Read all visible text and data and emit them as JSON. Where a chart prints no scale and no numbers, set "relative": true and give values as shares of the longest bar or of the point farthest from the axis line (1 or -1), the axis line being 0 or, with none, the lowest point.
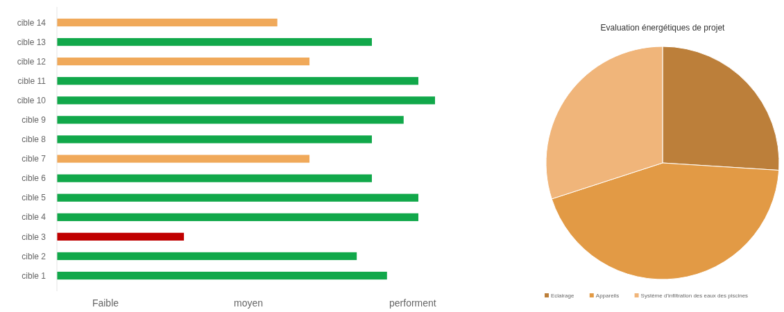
{
  "chart_data": [
    {
      "type": "bar",
      "orientation": "horizontal",
      "relative": true,
      "categories": [
        "cible 14",
        "cible 13",
        "cible 12",
        "cible 11",
        "cible 10",
        "cible 9",
        "cible 8",
        "cible 7",
        "cible 6",
        "cible 5",
        "cible 4",
        "cible 3",
        "cible 2",
        "cible 1"
      ],
      "values": [
        0.583,
        0.833,
        0.668,
        0.956,
        1,
        0.917,
        0.833,
        0.668,
        0.833,
        0.956,
        0.956,
        0.336,
        0.793,
        0.873
      ],
      "colors": [
        "#f0a95a",
        "#11a84a",
        "#f0a95a",
        "#11a84a",
        "#11a84a",
        "#11a84a",
        "#11a84a",
        "#f0a95a",
        "#11a84a",
        "#11a84a",
        "#11a84a",
        "#c00000",
        "#11a84a",
        "#11a84a"
      ],
      "annotations": [
        "Faible",
        "moyen",
        "performent"
      ]
    },
    {
      "type": "pie",
      "title": "Evaluation énergétiques de projet",
      "categories": [
        "Eclairage",
        "Appareils",
        "Système d'infiltration des eaux des piscines"
      ],
      "values": [
        26,
        44,
        30
      ],
      "colors": [
        "#bc7f3a",
        "#e29a45",
        "#f0b57a"
      ],
      "legend": "bottom"
    }
  ]
}
